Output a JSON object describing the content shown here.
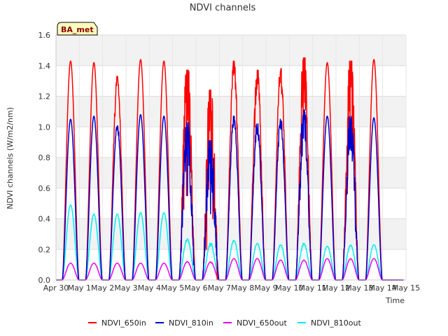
{
  "chart_data": {
    "type": "line",
    "title": "NDVI channels",
    "xlabel": "Time",
    "ylabel": "NDVI channels (W/m2/nm)",
    "badge": "BA_met",
    "ylim": [
      0.0,
      1.6
    ],
    "yticks": [
      "0.0",
      "0.2",
      "0.4",
      "0.6",
      "0.8",
      "1.0",
      "1.2",
      "1.4",
      "1.6"
    ],
    "xticks": [
      "Apr 30",
      "May 1",
      "May 2",
      "May 3",
      "May 4",
      "May 5",
      "May 6",
      "May 7",
      "May 8",
      "May 9",
      "May 10",
      "May 11",
      "May 12",
      "May 13",
      "May 14",
      "May 15"
    ],
    "xlim_days": [
      0,
      15
    ],
    "series": [
      {
        "name": "NDVI_650in",
        "color": "#ff0000",
        "daily_peak": [
          1.43,
          1.42,
          1.33,
          1.44,
          1.43,
          1.37,
          1.24,
          1.43,
          1.37,
          1.38,
          1.45,
          1.42,
          1.43,
          1.44
        ],
        "noise": [
          0,
          0,
          0.05,
          0,
          0,
          0.35,
          0.55,
          0.06,
          0.12,
          0.08,
          0.25,
          0,
          0.35,
          0
        ]
      },
      {
        "name": "NDVI_810in",
        "color": "#0000cc",
        "daily_peak": [
          1.05,
          1.07,
          1.02,
          1.08,
          1.07,
          1.03,
          0.91,
          1.07,
          1.02,
          1.05,
          1.11,
          1.07,
          1.07,
          1.06
        ],
        "noise": [
          0,
          0,
          0.03,
          0,
          0,
          0.3,
          0.45,
          0.05,
          0.08,
          0.06,
          0.2,
          0,
          0.25,
          0
        ]
      },
      {
        "name": "NDVI_650out",
        "color": "#ee00ee",
        "daily_peak": [
          0.11,
          0.11,
          0.11,
          0.11,
          0.11,
          0.12,
          0.12,
          0.14,
          0.14,
          0.13,
          0.13,
          0.14,
          0.14,
          0.14
        ],
        "noise": [
          0,
          0,
          0,
          0,
          0,
          0.02,
          0.03,
          0,
          0,
          0,
          0.02,
          0,
          0.02,
          0
        ]
      },
      {
        "name": "NDVI_810out",
        "color": "#00eeee",
        "daily_peak": [
          0.49,
          0.43,
          0.43,
          0.44,
          0.44,
          0.27,
          0.24,
          0.26,
          0.24,
          0.23,
          0.24,
          0.22,
          0.23,
          0.23
        ],
        "noise": [
          0,
          0,
          0,
          0,
          0,
          0.05,
          0.08,
          0.02,
          0.02,
          0.02,
          0.04,
          0,
          0.03,
          0
        ]
      }
    ],
    "legend_position": "bottom",
    "grid": true
  }
}
